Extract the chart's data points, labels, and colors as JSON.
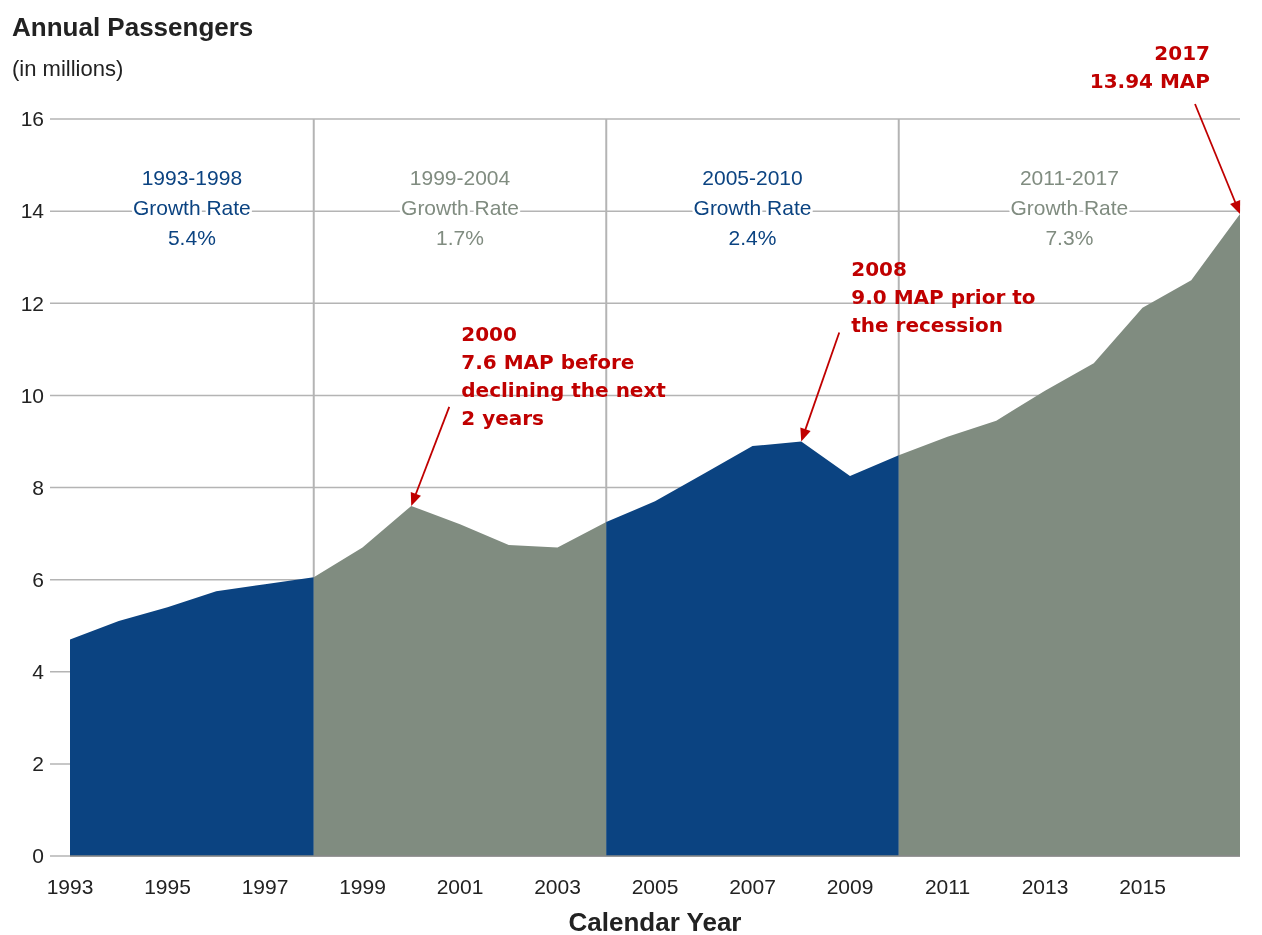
{
  "chart_data": {
    "type": "area",
    "title": "Annual Passengers",
    "subtitle": "(in millions)",
    "xlabel": "Calendar Year",
    "xlim": [
      1993,
      2017
    ],
    "xticks": [
      1993,
      1995,
      1997,
      1999,
      2001,
      2003,
      2005,
      2007,
      2009,
      2011,
      2013,
      2015
    ],
    "ylim": [
      0,
      16
    ],
    "yticks": [
      0,
      2,
      4,
      6,
      8,
      10,
      12,
      14,
      16
    ],
    "grid": "y",
    "series": [
      {
        "color": "#0b4381",
        "x": [
          1993,
          1994,
          1995,
          1996,
          1997,
          1998
        ],
        "values": [
          4.7,
          5.1,
          5.4,
          5.75,
          5.9,
          6.05
        ]
      },
      {
        "color": "#808c80",
        "x": [
          1998,
          1999,
          2000,
          2001,
          2002,
          2003,
          2004
        ],
        "values": [
          6.05,
          6.7,
          7.6,
          7.2,
          6.75,
          6.7,
          7.25
        ]
      },
      {
        "color": "#0b4381",
        "x": [
          2004,
          2005,
          2006,
          2007,
          2008,
          2009,
          2010
        ],
        "values": [
          7.25,
          7.7,
          8.3,
          8.9,
          9.0,
          8.25,
          8.7
        ]
      },
      {
        "color": "#808c80",
        "x": [
          2010,
          2011,
          2012,
          2013,
          2014,
          2015,
          2016,
          2017
        ],
        "values": [
          8.7,
          9.1,
          9.45,
          10.1,
          10.7,
          11.9,
          12.5,
          13.94
        ]
      }
    ],
    "ref_lines": [
      {
        "axis": "x",
        "value": 1998,
        "color": "#b4b4b4"
      },
      {
        "axis": "x",
        "value": 2004,
        "color": "#b4b4b4"
      },
      {
        "axis": "x",
        "value": 2010,
        "color": "#b4b4b4"
      }
    ],
    "annotations": [
      "1993-1998\nGrowth Rate\n5.4%",
      "1999-2004\nGrowth Rate\n1.7%",
      "2005-2010\nGrowth Rate\n2.4%",
      "2011-2017\nGrowth Rate\n7.3%",
      {
        "text": "2000\n7.6 MAP before\ndeclining the next\n2 years",
        "x": 2000,
        "y": 7.6
      },
      {
        "text": "2008\n9.0 MAP prior to\nthe recession",
        "x": 2008,
        "y": 9.0
      },
      {
        "text": "2017\n13.94 MAP",
        "x": 2017,
        "y": 13.94
      }
    ]
  }
}
